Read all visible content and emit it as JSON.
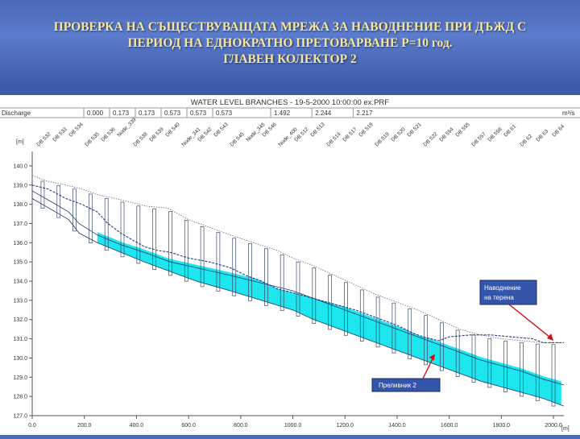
{
  "slide": {
    "title_lines": [
      "ПРОВЕРКА НА СЪЩЕСТВУВАЩАТА МРЕЖА ЗА НАВОДНЕНИЕ ПРИ ДЪЖД С",
      "ПЕРИОД НА ЕДНОКРАТНО ПРЕТОВАРВАНЕ Р=10 год.",
      "ГЛАВЕН КОЛЕКТОР 2"
    ]
  },
  "chart_data": {
    "type": "line",
    "title": "WATER LEVEL BRANCHES - 19-5-2000 10:00:00 ex.PRF",
    "discharge_label": "Discharge",
    "discharge_unit": "m³/s",
    "discharge_values": [
      "0.000",
      "0.173",
      "0.173",
      "0.573",
      "0.573",
      "0.573",
      "1.492",
      "2.244",
      "2.217"
    ],
    "ylabel": "[m]",
    "xlabel": "[m]",
    "xlim": [
      0,
      2040
    ],
    "ylim": [
      127.0,
      140.5
    ],
    "xticks": [
      "0.0",
      "200.0",
      "400.0",
      "600.0",
      "800.0",
      "1000.0",
      "1200.0",
      "1400.0",
      "1600.0",
      "1800.0",
      "2000.0"
    ],
    "yticks": [
      "127.0",
      "128.0",
      "129.0",
      "130.0",
      "131.0",
      "132.0",
      "133.0",
      "134.0",
      "135.0",
      "136.0",
      "137.0",
      "138.0",
      "139.0",
      "140.0"
    ],
    "node_labels": [
      "DB 532",
      "DB 533",
      "DB 534",
      "DB 535",
      "DB 536",
      "Node_339",
      "DB 538",
      "DB 539",
      "DB 540",
      "Node_341",
      "DB 542",
      "DB 543",
      "DB 545",
      "Node_345",
      "DB 546",
      "Node_400",
      "DB 512",
      "DB 513",
      "DB 514",
      "DB 517",
      "DB 518",
      "DB 519",
      "DB 520",
      "DB 521",
      "DB 522",
      "DB 554",
      "DB 555",
      "DB 557",
      "DB 558",
      "DB 61",
      "DB 62",
      "DB 63",
      "DB 64"
    ],
    "series": [
      {
        "name": "ground",
        "x": [
          0,
          60,
          130,
          190,
          250,
          320,
          380,
          440,
          520,
          600,
          680,
          760,
          850,
          940,
          1000,
          1080,
          1160,
          1240,
          1320,
          1400,
          1480,
          1560,
          1640,
          1720,
          1800,
          1880,
          1960,
          2040
        ],
        "y": [
          139.5,
          139.2,
          139.0,
          138.8,
          138.5,
          138.3,
          138.1,
          137.9,
          137.8,
          137.2,
          136.8,
          136.4,
          136.0,
          135.6,
          135.2,
          134.8,
          134.3,
          133.8,
          133.3,
          132.9,
          132.5,
          132.0,
          131.5,
          131.2,
          131.0,
          130.9,
          130.8,
          130.8
        ]
      },
      {
        "name": "water_level",
        "x": [
          0,
          60,
          130,
          190,
          250,
          290,
          340,
          390,
          430,
          480,
          530,
          600,
          680,
          760,
          820,
          880,
          940,
          1000,
          1080,
          1160,
          1240,
          1320,
          1400,
          1460,
          1500,
          1530,
          1560,
          1600,
          1680,
          1760,
          1840,
          1920,
          1960,
          2040
        ],
        "y": [
          139.0,
          138.8,
          138.3,
          138.0,
          137.6,
          137.0,
          136.5,
          136.1,
          135.8,
          135.6,
          135.5,
          135.2,
          135.0,
          134.7,
          134.3,
          134.0,
          133.6,
          133.4,
          133.1,
          132.8,
          132.5,
          132.1,
          131.7,
          131.3,
          131.1,
          131.0,
          130.9,
          131.1,
          131.2,
          131.2,
          131.1,
          131.0,
          130.8,
          130.8
        ]
      },
      {
        "name": "pipe_crown",
        "x": [
          0,
          90,
          140,
          180,
          250,
          340,
          430,
          530,
          630,
          760,
          880,
          1000,
          1080,
          1160,
          1240,
          1320,
          1400,
          1480,
          1560,
          1640,
          1720,
          1800,
          1880,
          1960,
          2040
        ],
        "y": [
          138.7,
          138.0,
          137.6,
          137.0,
          136.4,
          135.9,
          135.5,
          135.0,
          134.7,
          134.3,
          133.9,
          133.5,
          133.1,
          132.7,
          132.3,
          131.9,
          131.5,
          131.1,
          130.7,
          130.3,
          129.9,
          129.6,
          129.3,
          128.9,
          128.6
        ]
      },
      {
        "name": "pipe_invert",
        "x": [
          0,
          90,
          140,
          180,
          250,
          340,
          430,
          530,
          630,
          760,
          880,
          1000,
          1080,
          1160,
          1240,
          1320,
          1400,
          1480,
          1560,
          1640,
          1720,
          1800,
          1880,
          1960,
          2040
        ],
        "y": [
          138.3,
          137.6,
          137.2,
          136.5,
          136.0,
          135.5,
          135.0,
          134.5,
          134.0,
          133.5,
          133.0,
          132.5,
          132.0,
          131.6,
          131.2,
          130.8,
          130.4,
          130.0,
          129.6,
          129.2,
          128.8,
          128.5,
          128.2,
          127.9,
          127.5
        ]
      }
    ],
    "annotations": [
      {
        "text": "Наводнение на терена",
        "target_x": 2000,
        "target_y": 130.9
      },
      {
        "text": "Преливник 2",
        "target_x": 1545,
        "target_y": 130.2
      }
    ]
  }
}
